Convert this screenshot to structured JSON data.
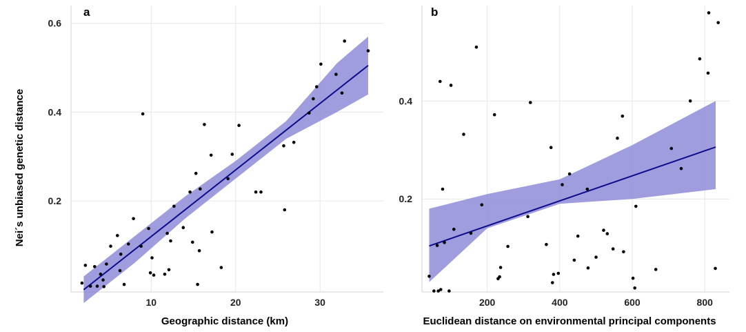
{
  "colors": {
    "ribbon": "#8a88d6",
    "fit_line": "#0d0d8c",
    "points": "#000000",
    "grid": "#e6e6e6"
  },
  "ylabel": "Nei´s unbiased genetic distance",
  "chart_data": [
    {
      "type": "scatter",
      "panel_label": "a",
      "xlabel": "Geographic distance (km)",
      "xlim": [
        0.5,
        37.5
      ],
      "ylim": [
        -0.005,
        0.64
      ],
      "xticks": [
        10,
        20,
        30
      ],
      "yticks": [
        0.2,
        0.4,
        0.6
      ],
      "grid": true,
      "fit": {
        "x": [
          2.0,
          35.7
        ],
        "y": [
          0.0,
          0.505
        ]
      },
      "band": {
        "x": [
          2.0,
          8.0,
          14.0,
          20.0,
          26.0,
          32.0,
          35.7
        ],
        "lower": [
          -0.03,
          0.06,
          0.16,
          0.25,
          0.34,
          0.4,
          0.44
        ],
        "upper": [
          0.03,
          0.12,
          0.21,
          0.29,
          0.38,
          0.51,
          0.57
        ]
      },
      "points": [
        [
          1.8,
          0.015
        ],
        [
          2.2,
          0.055
        ],
        [
          2.8,
          0.008
        ],
        [
          3.3,
          0.052
        ],
        [
          3.6,
          0.008
        ],
        [
          4.0,
          0.035
        ],
        [
          4.3,
          0.022
        ],
        [
          4.4,
          0.007
        ],
        [
          4.7,
          0.058
        ],
        [
          5.2,
          0.098
        ],
        [
          6.0,
          0.122
        ],
        [
          6.3,
          0.043
        ],
        [
          6.4,
          0.08
        ],
        [
          6.8,
          0.012
        ],
        [
          7.3,
          0.103
        ],
        [
          7.9,
          0.16
        ],
        [
          8.8,
          0.098
        ],
        [
          9.0,
          0.396
        ],
        [
          9.7,
          0.138
        ],
        [
          9.9,
          0.038
        ],
        [
          10.1,
          0.072
        ],
        [
          10.3,
          0.033
        ],
        [
          11.6,
          0.035
        ],
        [
          11.9,
          0.127
        ],
        [
          12.1,
          0.045
        ],
        [
          12.3,
          0.11
        ],
        [
          12.7,
          0.188
        ],
        [
          13.8,
          0.14
        ],
        [
          14.6,
          0.22
        ],
        [
          14.9,
          0.107
        ],
        [
          15.3,
          0.262
        ],
        [
          15.5,
          0.012
        ],
        [
          15.7,
          0.088
        ],
        [
          15.8,
          0.227
        ],
        [
          16.3,
          0.372
        ],
        [
          17.1,
          0.303
        ],
        [
          17.2,
          0.13
        ],
        [
          18.3,
          0.05
        ],
        [
          19.1,
          0.25
        ],
        [
          19.6,
          0.305
        ],
        [
          20.4,
          0.37
        ],
        [
          22.4,
          0.22
        ],
        [
          23.0,
          0.22
        ],
        [
          25.7,
          0.324
        ],
        [
          25.8,
          0.18
        ],
        [
          26.9,
          0.332
        ],
        [
          28.7,
          0.398
        ],
        [
          29.2,
          0.43
        ],
        [
          29.6,
          0.457
        ],
        [
          30.1,
          0.508
        ],
        [
          31.9,
          0.485
        ],
        [
          32.6,
          0.443
        ],
        [
          32.9,
          0.56
        ],
        [
          35.7,
          0.538
        ]
      ]
    },
    {
      "type": "scatter",
      "panel_label": "b",
      "xlabel": "Euclidean distance on environmental principal components",
      "xlim": [
        20,
        868
      ],
      "ylim": [
        0.01,
        0.595
      ],
      "xticks": [
        200,
        400,
        600,
        800
      ],
      "yticks": [
        0.2,
        0.4
      ],
      "grid": true,
      "fit": {
        "x": [
          40,
          830
        ],
        "y": [
          0.104,
          0.306
        ]
      },
      "band": {
        "x": [
          40,
          200,
          400,
          600,
          830
        ],
        "lower": [
          0.03,
          0.14,
          0.19,
          0.2,
          0.22
        ],
        "upper": [
          0.18,
          0.21,
          0.24,
          0.31,
          0.4
        ]
      },
      "points": [
        [
          40,
          0.042
        ],
        [
          53,
          0.012
        ],
        [
          62,
          0.105
        ],
        [
          65,
          0.012
        ],
        [
          70,
          0.44
        ],
        [
          72,
          0.015
        ],
        [
          77,
          0.22
        ],
        [
          82,
          0.111
        ],
        [
          95,
          0.012
        ],
        [
          100,
          0.432
        ],
        [
          108,
          0.138
        ],
        [
          135,
          0.332
        ],
        [
          155,
          0.13
        ],
        [
          170,
          0.51
        ],
        [
          185,
          0.188
        ],
        [
          220,
          0.372
        ],
        [
          230,
          0.037
        ],
        [
          234,
          0.041
        ],
        [
          237,
          0.06
        ],
        [
          257,
          0.103
        ],
        [
          312,
          0.164
        ],
        [
          319,
          0.397
        ],
        [
          363,
          0.107
        ],
        [
          376,
          0.305
        ],
        [
          380,
          0.029
        ],
        [
          383,
          0.046
        ],
        [
          396,
          0.048
        ],
        [
          407,
          0.229
        ],
        [
          427,
          0.251
        ],
        [
          440,
          0.075
        ],
        [
          450,
          0.124
        ],
        [
          476,
          0.22
        ],
        [
          478,
          0.059
        ],
        [
          500,
          0.081
        ],
        [
          521,
          0.136
        ],
        [
          531,
          0.129
        ],
        [
          547,
          0.098
        ],
        [
          559,
          0.324
        ],
        [
          573,
          0.369
        ],
        [
          576,
          0.092
        ],
        [
          602,
          0.038
        ],
        [
          607,
          0.018
        ],
        [
          610,
          0.185
        ],
        [
          665,
          0.056
        ],
        [
          708,
          0.303
        ],
        [
          735,
          0.262
        ],
        [
          760,
          0.4
        ],
        [
          786,
          0.486
        ],
        [
          809,
          0.457
        ],
        [
          811,
          0.58
        ],
        [
          829,
          0.058
        ],
        [
          837,
          0.56
        ]
      ]
    }
  ]
}
